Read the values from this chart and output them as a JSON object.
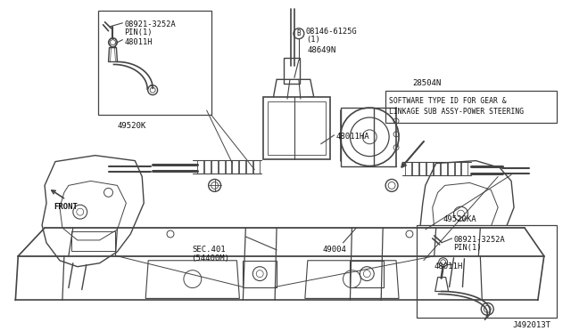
{
  "bg_color": "#ffffff",
  "fig_width": 6.4,
  "fig_height": 3.72,
  "dpi": 100,
  "lc": "#444444",
  "lc_light": "#888888",
  "tc": "#111111",
  "labels": {
    "tl_part1": "08921-3252A",
    "tl_part2": "PIN(1)",
    "tl_part3": "48011H",
    "tl_below": "49520K",
    "tc_bolt": "B",
    "tc_bolt_label": "08146-6125G",
    "tc_bolt_sub": "(1)",
    "tc_part": "48649N",
    "tc_part2": "48011HA",
    "tr_above": "28504N",
    "tr_box1": "SOFTWARE TYPE ID FOR GEAR &",
    "tr_box2": "LINKAGE SUB ASSY-POWER STEERING",
    "center1": "49004",
    "center2": "SEC.401",
    "center3": "(54400M)",
    "front": "FRONT",
    "br_above": "49520KA",
    "br_part1": "08921-3252A",
    "br_part2": "PIN(1)",
    "br_part3": "48011H",
    "footer": "J492013T"
  }
}
